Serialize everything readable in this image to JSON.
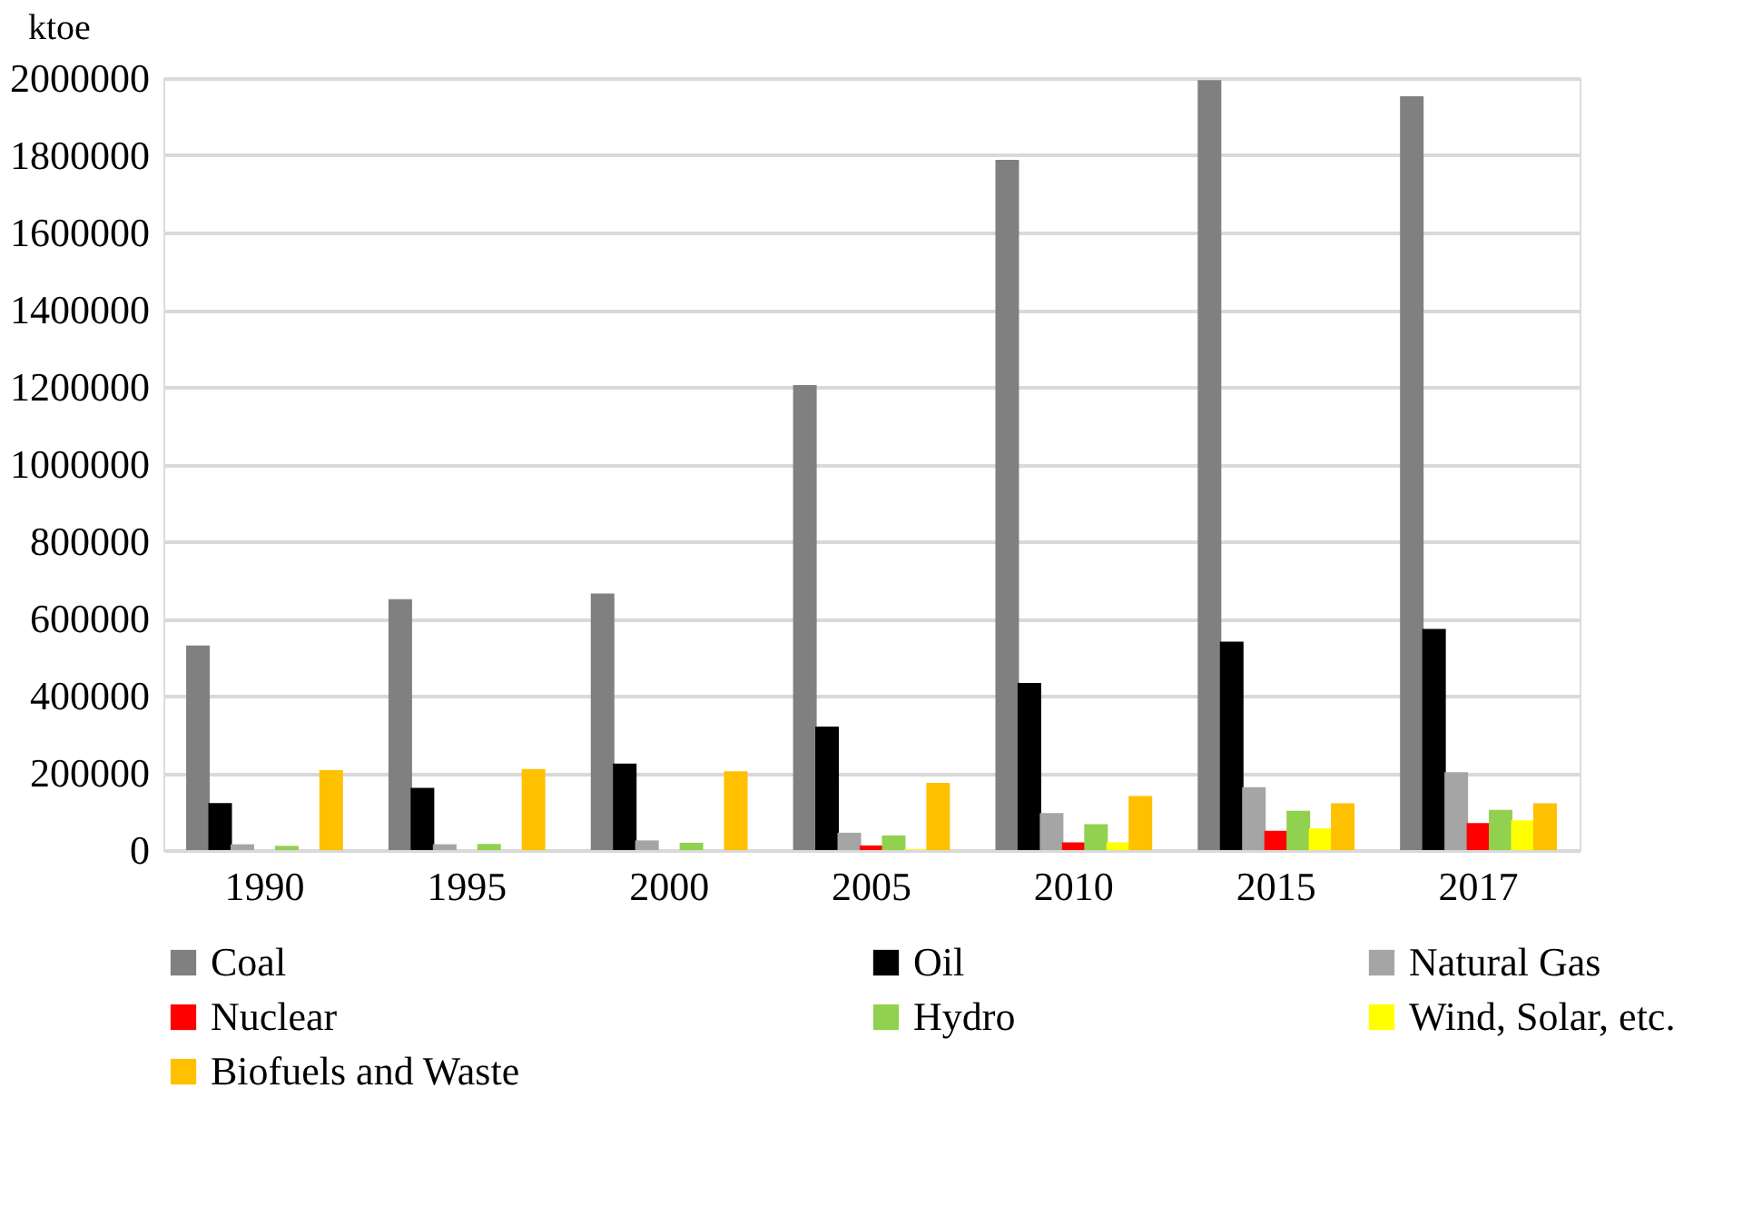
{
  "chart_data": {
    "type": "bar",
    "ylabel": "ktoe",
    "categories": [
      "1990",
      "1995",
      "2000",
      "2005",
      "2010",
      "2015",
      "2017"
    ],
    "series": [
      {
        "name": "Coal",
        "color": "#808080",
        "values": [
          530000,
          650000,
          665000,
          1205000,
          1788000,
          1995000,
          1953000
        ]
      },
      {
        "name": "Oil",
        "color": "#000000",
        "values": [
          122000,
          161000,
          224000,
          320000,
          433000,
          540000,
          573000
        ]
      },
      {
        "name": "Natural Gas",
        "color": "#a5a5a5",
        "values": [
          15000,
          15000,
          25000,
          45000,
          96000,
          163000,
          202000
        ]
      },
      {
        "name": "Nuclear",
        "color": "#ff0000",
        "values": [
          0,
          0,
          0,
          12000,
          20000,
          50000,
          70000
        ]
      },
      {
        "name": "Hydro",
        "color": "#92d050",
        "values": [
          11000,
          16000,
          19000,
          38000,
          67000,
          102000,
          104000
        ]
      },
      {
        "name": "Wind, Solar, etc.",
        "color": "#ffff00",
        "values": [
          0,
          0,
          0,
          2000,
          20000,
          56000,
          77000
        ]
      },
      {
        "name": "Biofuels and Waste",
        "color": "#ffc000",
        "values": [
          207000,
          210000,
          204000,
          174000,
          140000,
          121000,
          121000
        ]
      }
    ],
    "ylim": [
      0,
      2000000
    ],
    "yticks": [
      0,
      200000,
      400000,
      600000,
      800000,
      1000000,
      1200000,
      1400000,
      1600000,
      1800000,
      2000000
    ],
    "grid": "y",
    "legend": "bottom"
  }
}
